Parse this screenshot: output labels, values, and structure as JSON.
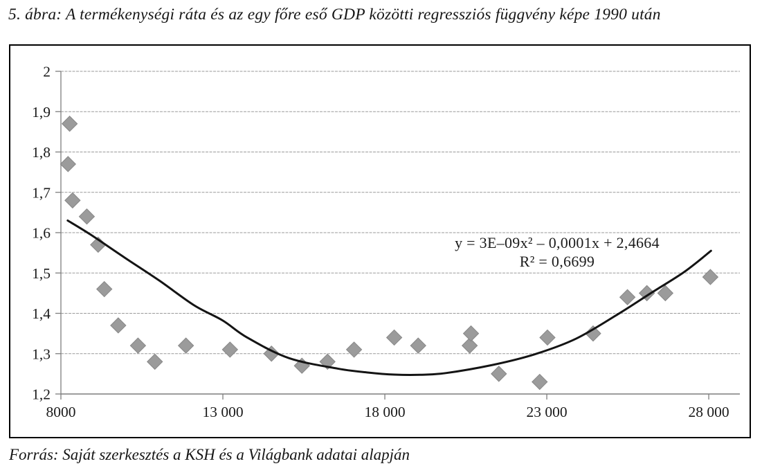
{
  "title": "5. ábra: A termékenységi ráta és az egy főre eső GDP közötti regressziós függvény képe 1990 után",
  "source": "Forrás: Saját szerkesztés a KSH és a Világbank adatai alapján",
  "colors": {
    "marker_fill": "#9b9b9b",
    "marker_border": "#878787",
    "trendline": "#141414",
    "gridline": "#9a9a9a",
    "axis": "#7d7d7d",
    "text": "#1a1a1a",
    "frame_border": "#000000"
  },
  "chart_data": {
    "type": "scatter",
    "title": "",
    "xlabel": "",
    "ylabel": "",
    "grid": "horizontal-dashed",
    "legend": "none",
    "xlim": [
      8000,
      28960
    ],
    "ylim": [
      1.2,
      2.0
    ],
    "x_ticks": [
      8000,
      13000,
      18000,
      23000,
      28000
    ],
    "x_tick_labels": [
      "8000",
      "13 000",
      "18 000",
      "23 000",
      "28 000"
    ],
    "y_ticks": [
      1.2,
      1.3,
      1.4,
      1.5,
      1.6,
      1.7,
      1.8,
      1.9,
      2.0
    ],
    "y_tick_labels": [
      "1,2",
      "1,3",
      "1,4",
      "1,5",
      "1,6",
      "1,7",
      "1,8",
      "1,9",
      "2"
    ],
    "points": [
      [
        8270,
        1.87
      ],
      [
        8220,
        1.77
      ],
      [
        8360,
        1.68
      ],
      [
        8800,
        1.64
      ],
      [
        9150,
        1.57
      ],
      [
        9340,
        1.46
      ],
      [
        9770,
        1.37
      ],
      [
        10380,
        1.32
      ],
      [
        10900,
        1.28
      ],
      [
        11860,
        1.32
      ],
      [
        13220,
        1.31
      ],
      [
        14500,
        1.3
      ],
      [
        15440,
        1.27
      ],
      [
        16230,
        1.28
      ],
      [
        17050,
        1.31
      ],
      [
        18290,
        1.34
      ],
      [
        19030,
        1.32
      ],
      [
        20620,
        1.32
      ],
      [
        20660,
        1.35
      ],
      [
        21520,
        1.25
      ],
      [
        22780,
        1.23
      ],
      [
        23020,
        1.34
      ],
      [
        24430,
        1.35
      ],
      [
        25490,
        1.44
      ],
      [
        26090,
        1.45
      ],
      [
        26660,
        1.45
      ],
      [
        28050,
        1.49
      ]
    ],
    "trendline_points": [
      [
        8210,
        1.63
      ],
      [
        8900,
        1.596
      ],
      [
        9970,
        1.538
      ],
      [
        11040,
        1.481
      ],
      [
        12110,
        1.42
      ],
      [
        13000,
        1.382
      ],
      [
        13750,
        1.34
      ],
      [
        15040,
        1.289
      ],
      [
        16540,
        1.263
      ],
      [
        17500,
        1.253
      ],
      [
        18300,
        1.248
      ],
      [
        19100,
        1.2475
      ],
      [
        19900,
        1.252
      ],
      [
        21320,
        1.272
      ],
      [
        22610,
        1.298
      ],
      [
        23900,
        1.337
      ],
      [
        25200,
        1.398
      ],
      [
        26250,
        1.452
      ],
      [
        27250,
        1.503
      ],
      [
        28070,
        1.555
      ]
    ],
    "annotation": {
      "equation": "y = 3E–09x² – 0,0001x + 2,4664",
      "r_squared": "R² = 0,6699"
    }
  }
}
